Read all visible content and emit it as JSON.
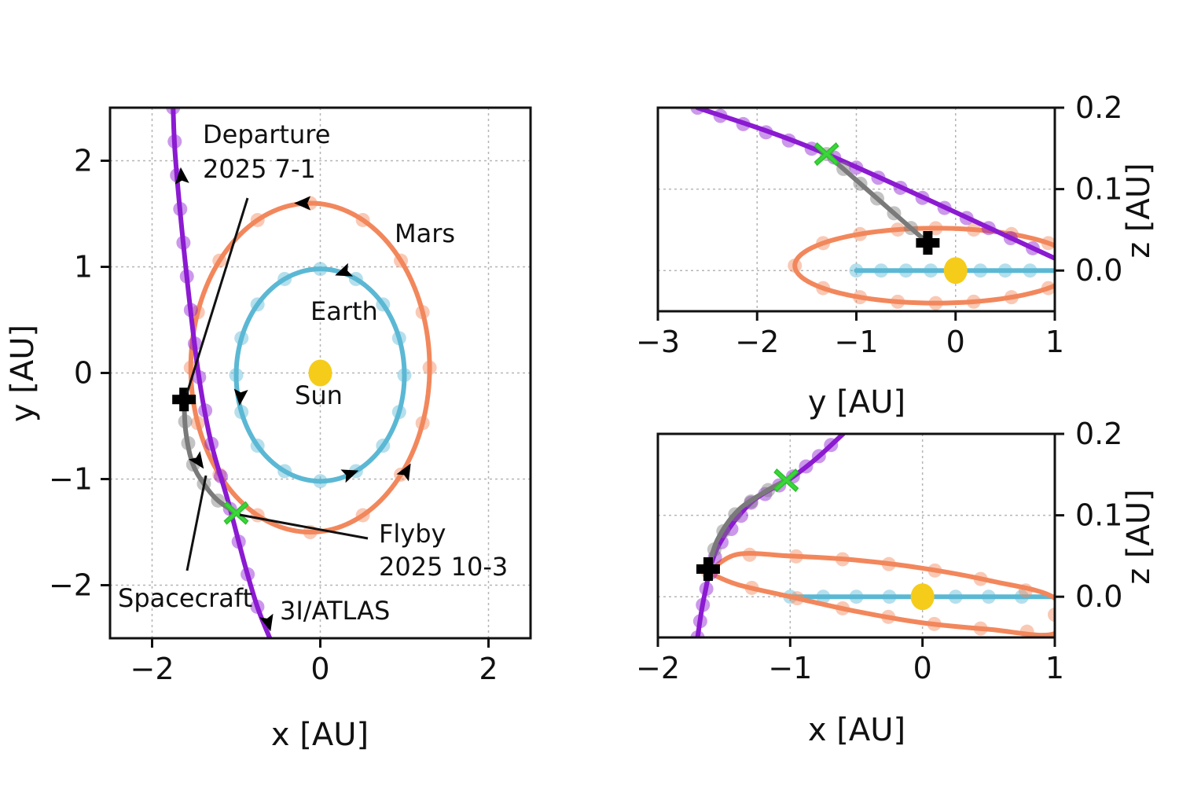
{
  "chart_data": [
    {
      "type": "line",
      "panel": "xy",
      "xlabel": "x [AU]",
      "ylabel": "y [AU]",
      "xlim": [
        -2.5,
        2.5
      ],
      "ylim": [
        -2.5,
        2.5
      ],
      "xticks": [
        -2,
        0,
        2
      ],
      "yticks": [
        -2,
        -1,
        0,
        1,
        2
      ],
      "xtick_labels": [
        "−2",
        "0",
        "2"
      ],
      "ytick_labels": [
        "−2",
        "−1",
        "0",
        "1",
        "2"
      ],
      "grid": true,
      "series": [
        {
          "name": "Earth",
          "color": "#5bb8d4",
          "shape": "ellipse",
          "center": [
            0.0,
            -0.02
          ],
          "radii": [
            1.0,
            1.0
          ]
        },
        {
          "name": "Mars",
          "color": "#f2875c",
          "shape": "ellipse",
          "center": [
            -0.12,
            0.05
          ],
          "radii": [
            1.42,
            1.55
          ]
        },
        {
          "name": "3I/ATLAS",
          "color": "#8b1ad1",
          "x": [
            -1.75,
            -1.72,
            -1.6,
            -1.45,
            -1.3,
            -1.1,
            -0.9,
            -0.75,
            -0.6
          ],
          "y": [
            2.5,
            2.0,
            1.0,
            0.0,
            -0.65,
            -1.2,
            -1.8,
            -2.2,
            -2.5
          ]
        },
        {
          "name": "Spacecraft",
          "color": "#7a7a7a",
          "x": [
            -1.62,
            -1.6,
            -1.52,
            -1.38,
            -1.22,
            -1.0
          ],
          "y": [
            -0.25,
            -0.55,
            -0.85,
            -1.05,
            -1.2,
            -1.32
          ]
        }
      ],
      "markers": {
        "departure": {
          "x": -1.62,
          "y": -0.25,
          "symbol": "plus",
          "color": "#000000"
        },
        "flyby": {
          "x": -1.0,
          "y": -1.32,
          "symbol": "x",
          "color": "#3ad63a"
        },
        "sun": {
          "x": 0.0,
          "y": 0.0,
          "color": "#f5cc1a"
        }
      },
      "annotations": {
        "departure_line1": "Departure",
        "departure_line2": "2025 7-1",
        "flyby_line1": "Flyby",
        "flyby_line2": "2025 10-3",
        "mars": "Mars",
        "earth": "Earth",
        "sun": "Sun",
        "spacecraft": "Spacecraft",
        "atlas": "3I/ATLAS"
      }
    },
    {
      "type": "line",
      "panel": "yz",
      "xlabel": "y [AU]",
      "ylabel": "z [AU]",
      "xlim": [
        -3,
        1
      ],
      "ylim": [
        -0.05,
        0.2
      ],
      "xticks": [
        -3,
        -2,
        -1,
        0,
        1
      ],
      "yticks": [
        0.0,
        0.1,
        0.2
      ],
      "xtick_labels": [
        "−3",
        "−2",
        "−1",
        "0",
        "1"
      ],
      "ytick_labels": [
        "0.0",
        "0.1",
        "0.2"
      ],
      "grid": true,
      "series": [
        {
          "name": "Earth",
          "color": "#5bb8d4",
          "x": [
            -1.0,
            1.0
          ],
          "y": [
            0.0,
            0.0
          ]
        },
        {
          "name": "Mars",
          "color": "#f2875c",
          "shape": "ellipse",
          "center": [
            -0.2,
            0.006
          ],
          "radii": [
            1.42,
            0.046
          ]
        },
        {
          "name": "3I/ATLAS",
          "color": "#8b1ad1",
          "x": [
            -2.6,
            -1.3,
            1.0
          ],
          "y": [
            0.2,
            0.143,
            0.015
          ]
        },
        {
          "name": "Spacecraft",
          "color": "#7a7a7a",
          "x": [
            -1.3,
            -0.28
          ],
          "y": [
            0.143,
            0.034
          ]
        }
      ],
      "markers": {
        "departure": {
          "x": -0.28,
          "y": 0.034
        },
        "flyby": {
          "x": -1.3,
          "y": 0.143
        },
        "sun": {
          "x": 0.0,
          "y": 0.0
        }
      }
    },
    {
      "type": "line",
      "panel": "xz",
      "xlabel": "x [AU]",
      "ylabel": "z [AU]",
      "xlim": [
        -2,
        1
      ],
      "ylim": [
        -0.05,
        0.2
      ],
      "xticks": [
        -2,
        -1,
        0,
        1
      ],
      "yticks": [
        0.0,
        0.1,
        0.2
      ],
      "xtick_labels": [
        "−2",
        "−1",
        "0",
        "1"
      ],
      "ytick_labels": [
        "0.0",
        "0.1",
        "0.2"
      ],
      "grid": true,
      "series": [
        {
          "name": "Earth",
          "color": "#5bb8d4",
          "x": [
            -1.0,
            1.0
          ],
          "y": [
            0.0,
            0.0
          ]
        },
        {
          "name": "Mars",
          "color": "#f2875c",
          "x": [
            -1.62,
            -1.4,
            -1.0,
            -0.5,
            0.0,
            0.5,
            1.0,
            1.0,
            0.5,
            0.0,
            -0.5,
            -1.0,
            -1.4,
            -1.62
          ],
          "y": [
            0.03,
            0.052,
            0.05,
            0.045,
            0.035,
            0.02,
            -0.002,
            -0.045,
            -0.04,
            -0.032,
            -0.018,
            0.0,
            0.015,
            0.03
          ]
        },
        {
          "name": "3I/ATLAS",
          "color": "#8b1ad1",
          "x": [
            -1.7,
            -1.65,
            -1.55,
            -1.3,
            -1.0,
            -0.8,
            -0.6
          ],
          "y": [
            -0.05,
            0.0,
            0.06,
            0.115,
            0.145,
            0.17,
            0.2
          ]
        },
        {
          "name": "Spacecraft",
          "color": "#7a7a7a",
          "x": [
            -1.62,
            -1.55,
            -1.4,
            -1.2,
            -1.03
          ],
          "y": [
            0.034,
            0.07,
            0.105,
            0.128,
            0.143
          ]
        }
      ],
      "markers": {
        "departure": {
          "x": -1.62,
          "y": 0.034
        },
        "flyby": {
          "x": -1.03,
          "y": 0.143
        },
        "sun": {
          "x": 0.0,
          "y": 0.0
        }
      }
    }
  ]
}
